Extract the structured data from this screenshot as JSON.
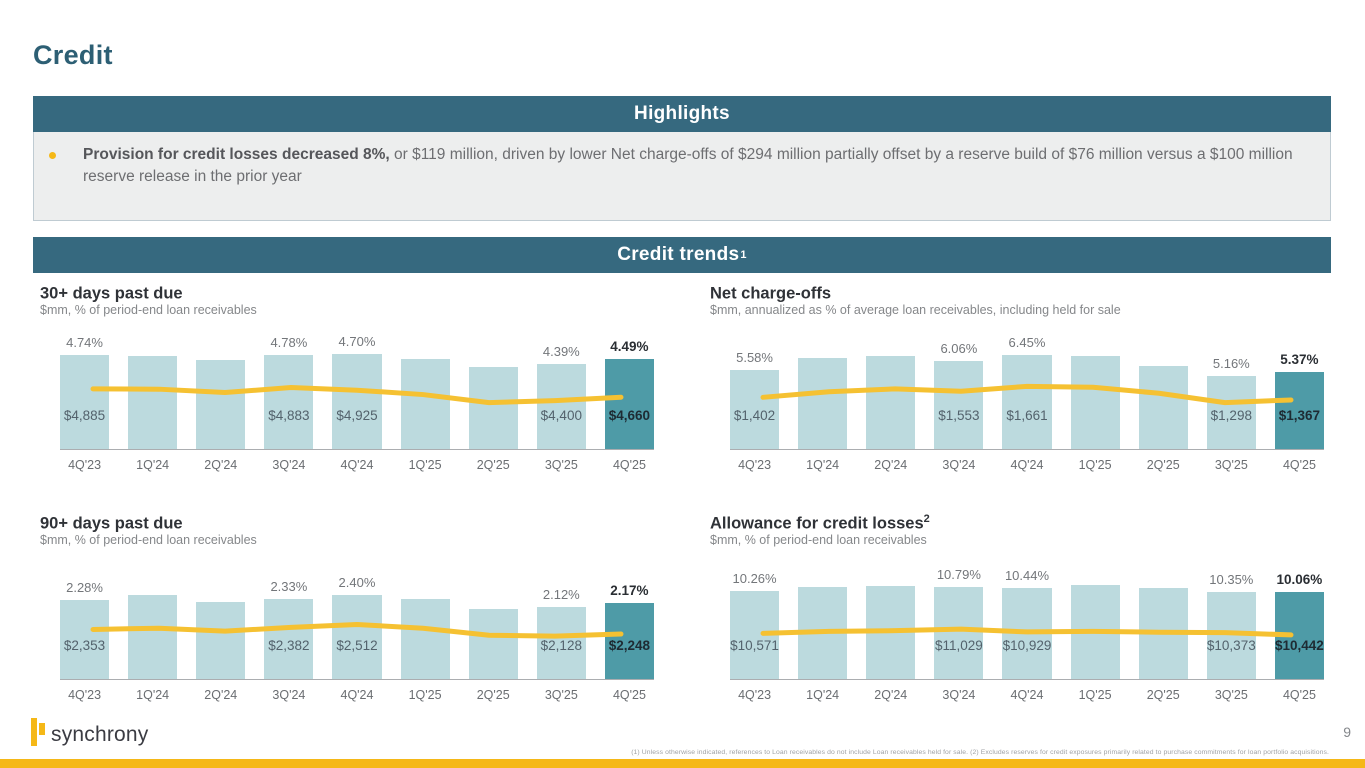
{
  "page": {
    "title": "Credit",
    "page_number": "9"
  },
  "highlights": {
    "banner": "Highlights",
    "bullet_bold": "Provision for credit losses decreased 8%,",
    "bullet_rest": " or $119 million, driven by lower Net charge-offs of $294 million partially offset by a reserve build of $76 million versus a $100 million reserve release in the prior year"
  },
  "trends": {
    "banner": "Credit trends",
    "banner_sup": "1"
  },
  "footer": {
    "logo_text": "synchrony",
    "footnote": "(1) Unless otherwise indicated, references to Loan receivables do not include Loan receivables held for sale.  (2) Excludes reserves for credit exposures primarily related to purchase commitments for loan portfolio acquisitions."
  },
  "colors": {
    "title-teal": "#2D5F74",
    "banner-teal": "#36697F",
    "box-gray": "#EDEEEE",
    "box-border": "#BFCBD2",
    "text-gray": "#6D6E71",
    "text-dark-gray": "#55565A",
    "bar-light": "#BCDADE",
    "bar-dark": "#4E9BA7",
    "gold": "#F5B817",
    "trend-line": "#F5C132"
  },
  "chart_data": [
    {
      "type": "bar+line",
      "title": "30+ days past due",
      "title_sup": "",
      "subtitle": "$mm, % of period-end loan receivables",
      "categories": [
        "4Q'23",
        "1Q'24",
        "2Q'24",
        "3Q'24",
        "4Q'24",
        "1Q'25",
        "2Q'25",
        "3Q'25",
        "4Q'25"
      ],
      "ylim": [
        0,
        6000
      ],
      "bars": {
        "name": "30+ days past due ($mm)",
        "values": [
          4885,
          4830,
          4620,
          4883,
          4925,
          4670,
          4250,
          4400,
          4660
        ],
        "labels": [
          "$4,885",
          null,
          null,
          "$4,883",
          "$4,925",
          null,
          null,
          "$4,400",
          "$4,660"
        ]
      },
      "line": {
        "name": "% of period-end loan receivables",
        "values": [
          4.74,
          4.73,
          4.63,
          4.78,
          4.7,
          4.57,
          4.33,
          4.39,
          4.49
        ],
        "labels": [
          "4.74%",
          null,
          null,
          "4.78%",
          "4.70%",
          null,
          null,
          "4.39%",
          "4.49%"
        ],
        "band": [
          47,
          60
        ]
      }
    },
    {
      "type": "bar+line",
      "title": "Net charge-offs",
      "title_sup": "",
      "subtitle": "$mm, annualized as % of average loan receivables, including held for sale",
      "categories": [
        "4Q'23",
        "1Q'24",
        "2Q'24",
        "3Q'24",
        "4Q'24",
        "1Q'25",
        "2Q'25",
        "3Q'25",
        "4Q'25"
      ],
      "ylim": [
        0,
        2050
      ],
      "bars": {
        "name": "Net charge-offs ($mm)",
        "values": [
          1402,
          1612,
          1650,
          1553,
          1661,
          1635,
          1460,
          1298,
          1367
        ],
        "labels": [
          "$1,402",
          null,
          null,
          "$1,553",
          "$1,661",
          null,
          null,
          "$1,298",
          "$1,367"
        ]
      },
      "line": {
        "name": "annualized % of average loan receivables",
        "values": [
          5.58,
          6.02,
          6.25,
          6.06,
          6.45,
          6.38,
          5.9,
          5.16,
          5.37
        ],
        "labels": [
          "5.58%",
          null,
          null,
          "6.06%",
          "6.45%",
          null,
          null,
          "5.16%",
          "5.37%"
        ],
        "band": [
          46,
          60
        ]
      }
    },
    {
      "type": "bar+line",
      "title": "90+ days past due",
      "title_sup": "",
      "subtitle": "$mm, % of period-end loan receivables",
      "categories": [
        "4Q'23",
        "1Q'24",
        "2Q'24",
        "3Q'24",
        "4Q'24",
        "1Q'25",
        "2Q'25",
        "3Q'25",
        "4Q'25"
      ],
      "ylim": [
        0,
        3450
      ],
      "bars": {
        "name": "90+ days past due ($mm)",
        "values": [
          2353,
          2490,
          2300,
          2382,
          2512,
          2390,
          2090,
          2128,
          2248
        ],
        "labels": [
          "$2,353",
          null,
          null,
          "$2,382",
          "$2,512",
          null,
          null,
          "$2,128",
          "$2,248"
        ]
      },
      "line": {
        "name": "% of period-end loan receivables",
        "values": [
          2.28,
          2.31,
          2.24,
          2.33,
          2.4,
          2.31,
          2.14,
          2.12,
          2.17
        ],
        "labels": [
          "2.28%",
          null,
          null,
          "2.33%",
          "2.40%",
          null,
          null,
          "2.12%",
          "2.17%"
        ],
        "band": [
          53,
          63
        ]
      }
    },
    {
      "type": "bar+line",
      "title": "Allowance for credit losses",
      "title_sup": "2",
      "subtitle": "$mm, % of period-end loan receivables",
      "categories": [
        "4Q'23",
        "1Q'24",
        "2Q'24",
        "3Q'24",
        "4Q'24",
        "1Q'25",
        "2Q'25",
        "3Q'25",
        "4Q'25"
      ],
      "ylim": [
        0,
        13900
      ],
      "bars": {
        "name": "Allowance for credit losses ($mm)",
        "values": [
          10571,
          11000,
          11100,
          11029,
          10929,
          11300,
          10850,
          10373,
          10442
        ],
        "labels": [
          "$10,571",
          null,
          null,
          "$11,029",
          "$10,929",
          null,
          null,
          "$10,373",
          "$10,442"
        ]
      },
      "line": {
        "name": "% of period-end loan receivables",
        "values": [
          10.26,
          10.5,
          10.6,
          10.79,
          10.44,
          10.5,
          10.4,
          10.35,
          10.06
        ],
        "labels": [
          "10.26%",
          null,
          null,
          "10.79%",
          "10.44%",
          null,
          null,
          "10.35%",
          "10.06%"
        ],
        "band": [
          57,
          62
        ]
      }
    }
  ]
}
